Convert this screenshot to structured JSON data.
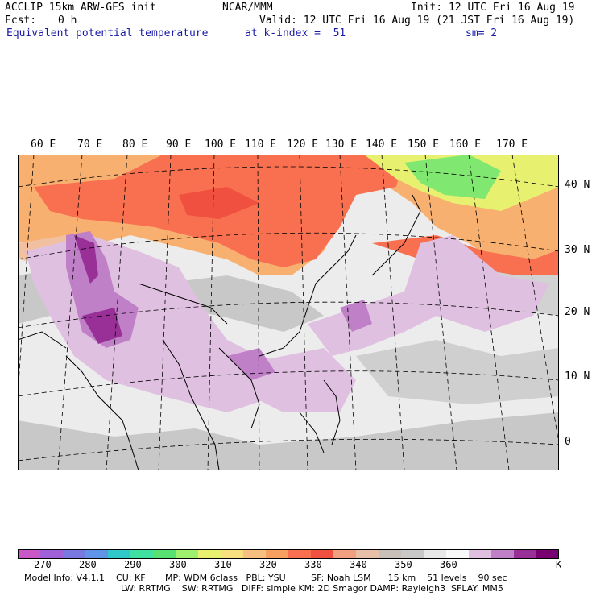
{
  "header": {
    "model_line": "ACCLIP 15km ARW-GFS init",
    "org": "NCAR/MMM",
    "init": "Init: 12 UTC Fri 16 Aug 19",
    "fcst_label": "Fcst:",
    "fcst_value": "0 h",
    "valid": "Valid: 12 UTC Fri 16 Aug 19 (21 JST Fri 16 Aug 19)",
    "field_name": "Equivalent potential temperature",
    "level": "at k-index =  51",
    "smoothing": "sm= 2"
  },
  "map": {
    "lon_labels": [
      "60 E",
      "70 E",
      "80 E",
      "90 E",
      "100 E",
      "110 E",
      "120 E",
      "130 E",
      "140 E",
      "150 E",
      "160 E",
      "170 E"
    ],
    "lat_labels": [
      "40 N",
      "30 N",
      "20 N",
      "10 N",
      "0"
    ]
  },
  "colorbar": {
    "unit": "K",
    "tick_labels": [
      "270",
      "280",
      "290",
      "300",
      "310",
      "320",
      "330",
      "340",
      "350",
      "360"
    ],
    "colors": [
      "#c858c8",
      "#a060d8",
      "#7878e0",
      "#6094e8",
      "#30c8c8",
      "#40e0a0",
      "#58e070",
      "#a0f070",
      "#e8f070",
      "#f8e080",
      "#f8c080",
      "#f8a060",
      "#f87050",
      "#f05040",
      "#f0a080",
      "#e8c0a8",
      "#c8c0b8",
      "#c8c8c8",
      "#e8e8e8",
      "#f8f8f8",
      "#e0c0e0",
      "#c080c8",
      "#983098",
      "#780070"
    ]
  },
  "footer": {
    "line1": "Model Info: V4.1.1    CU: KF       MP: WDM 6class   PBL: YSU         SF: Noah LSM      15 km    51 levels    90 sec",
    "line2": "LW: RRTMG    SW: RRTMG   DIFF: simple KM: 2D Smagor DAMP: Rayleigh3  SFLAY: MM5"
  }
}
